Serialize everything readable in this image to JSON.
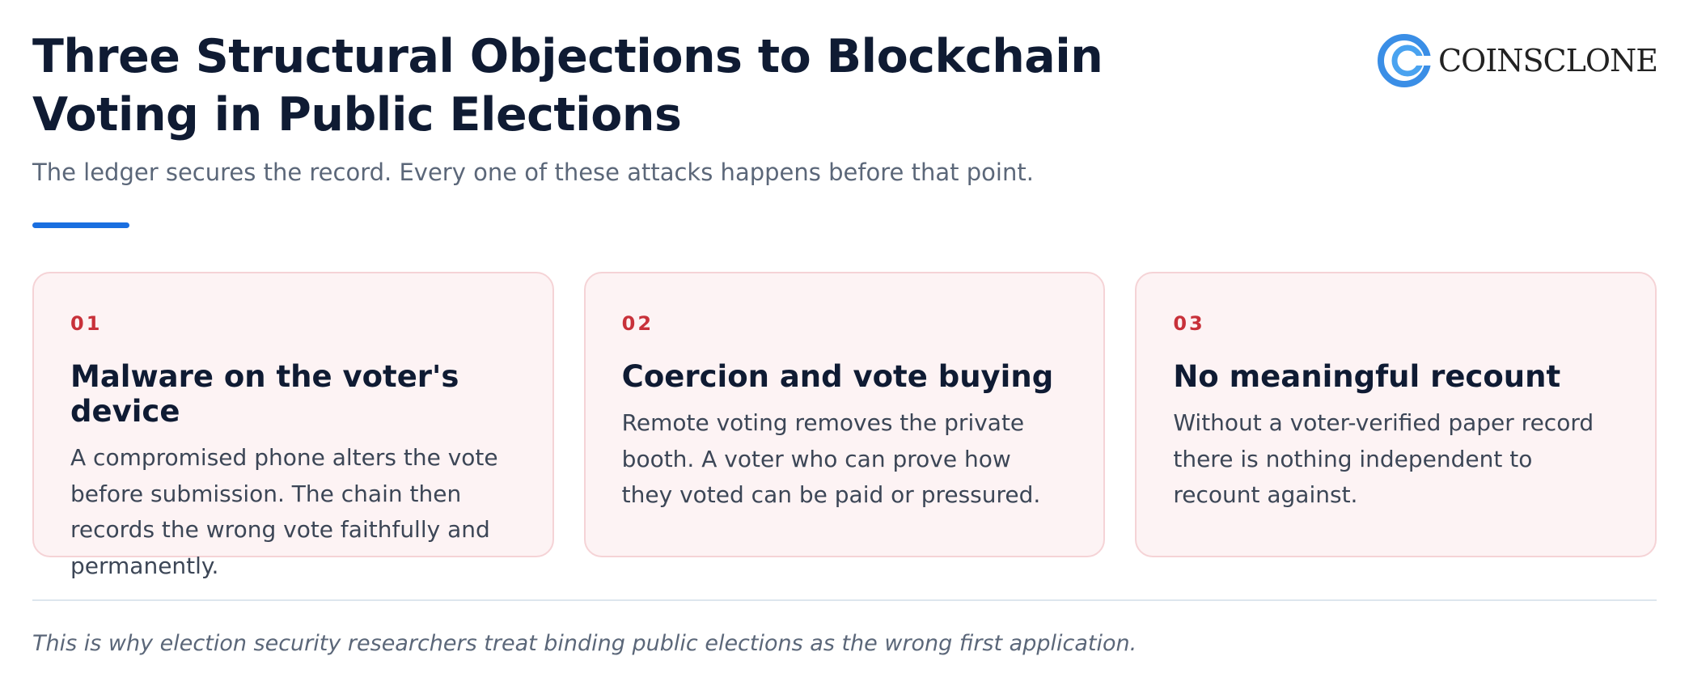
{
  "header": {
    "title": "Three Structural Objections to Blockchain Voting in Public Elections",
    "subtitle": "The ledger secures the record. Every one of these attacks happens before that point."
  },
  "brand": "COINSCLONE",
  "cards": [
    {
      "number": "01",
      "title": "Malware on the voter's device",
      "body": "A compromised phone alters the vote before submission. The chain then records the wrong vote faithfully and permanently."
    },
    {
      "number": "02",
      "title": "Coercion and vote buying",
      "body": "Remote voting removes the private booth. A voter who can prove how they voted can be paid or pressured."
    },
    {
      "number": "03",
      "title": "No meaningful recount",
      "body": "Without a voter-verified paper record there is nothing independent to recount against."
    }
  ],
  "footer": "This is why election security researchers treat binding public elections as the wrong first application."
}
